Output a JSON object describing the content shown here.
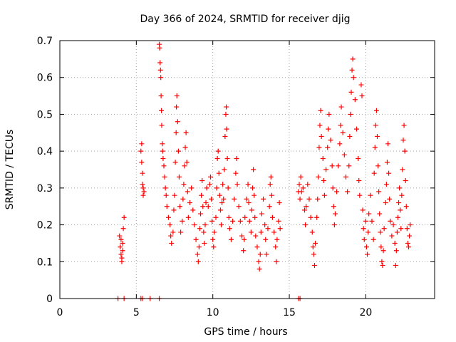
{
  "chart_data": {
    "type": "scatter",
    "title": "Day 366 of 2024, SRMTID for receiver djig",
    "xlabel": "GPS time / hours",
    "ylabel": "SRMTID / TECUs",
    "xlim": [
      0,
      24.5
    ],
    "ylim": [
      0,
      0.7
    ],
    "grid": true,
    "x_ticks": [
      0,
      5,
      10,
      15,
      20
    ],
    "y_ticks": [
      0,
      0.1,
      0.2,
      0.3,
      0.4,
      0.5,
      0.6,
      0.7
    ],
    "x_tick_labels": [
      "0",
      "5",
      "10",
      "15",
      "20"
    ],
    "y_tick_labels": [
      "0",
      "0.1",
      "0.2",
      "0.3",
      "0.4",
      "0.5",
      "0.6",
      "0.7"
    ],
    "marker": "plus",
    "color": "#ff0000",
    "series": [
      {
        "name": "djig",
        "points": [
          [
            3.8,
            0.0
          ],
          [
            4.2,
            0.0
          ],
          [
            5.3,
            0.0
          ],
          [
            5.4,
            0.0
          ],
          [
            5.9,
            0.0
          ],
          [
            6.5,
            0.0
          ],
          [
            15.6,
            0.0
          ],
          [
            15.7,
            0.0
          ],
          [
            3.9,
            0.17
          ],
          [
            3.95,
            0.14
          ],
          [
            4.0,
            0.12
          ],
          [
            4.05,
            0.1
          ],
          [
            4.1,
            0.15
          ],
          [
            4.15,
            0.19
          ],
          [
            4.2,
            0.22
          ],
          [
            4.0,
            0.16
          ],
          [
            4.1,
            0.13
          ],
          [
            4.05,
            0.11
          ],
          [
            5.3,
            0.4
          ],
          [
            5.35,
            0.42
          ],
          [
            5.4,
            0.34
          ],
          [
            5.45,
            0.3
          ],
          [
            5.5,
            0.29
          ],
          [
            5.35,
            0.37
          ],
          [
            5.45,
            0.28
          ],
          [
            5.4,
            0.31
          ],
          [
            6.5,
            0.69
          ],
          [
            6.52,
            0.68
          ],
          [
            6.55,
            0.64
          ],
          [
            6.58,
            0.62
          ],
          [
            6.6,
            0.6
          ],
          [
            6.62,
            0.55
          ],
          [
            6.64,
            0.51
          ],
          [
            6.66,
            0.47
          ],
          [
            6.7,
            0.42
          ],
          [
            6.72,
            0.4
          ],
          [
            6.75,
            0.38
          ],
          [
            6.8,
            0.36
          ],
          [
            6.85,
            0.33
          ],
          [
            6.9,
            0.3
          ],
          [
            6.95,
            0.28
          ],
          [
            7.0,
            0.25
          ],
          [
            7.1,
            0.22
          ],
          [
            7.2,
            0.2
          ],
          [
            7.25,
            0.17
          ],
          [
            7.3,
            0.15
          ],
          [
            7.4,
            0.18
          ],
          [
            7.45,
            0.24
          ],
          [
            7.5,
            0.28
          ],
          [
            7.55,
            0.37
          ],
          [
            7.6,
            0.45
          ],
          [
            7.62,
            0.52
          ],
          [
            7.65,
            0.55
          ],
          [
            7.7,
            0.48
          ],
          [
            7.75,
            0.4
          ],
          [
            7.8,
            0.33
          ],
          [
            7.85,
            0.25
          ],
          [
            7.9,
            0.18
          ],
          [
            8.0,
            0.21
          ],
          [
            8.05,
            0.27
          ],
          [
            8.1,
            0.31
          ],
          [
            8.15,
            0.36
          ],
          [
            8.2,
            0.41
          ],
          [
            8.25,
            0.45
          ],
          [
            8.3,
            0.37
          ],
          [
            8.35,
            0.29
          ],
          [
            8.4,
            0.22
          ],
          [
            8.5,
            0.26
          ],
          [
            8.6,
            0.3
          ],
          [
            8.7,
            0.24
          ],
          [
            8.8,
            0.2
          ],
          [
            8.9,
            0.16
          ],
          [
            9.0,
            0.12
          ],
          [
            9.05,
            0.1
          ],
          [
            9.1,
            0.14
          ],
          [
            9.15,
            0.19
          ],
          [
            9.2,
            0.23
          ],
          [
            9.25,
            0.28
          ],
          [
            9.3,
            0.32
          ],
          [
            9.35,
            0.25
          ],
          [
            9.4,
            0.18
          ],
          [
            9.45,
            0.15
          ],
          [
            9.5,
            0.2
          ],
          [
            9.55,
            0.26
          ],
          [
            9.6,
            0.3
          ],
          [
            9.7,
            0.25
          ],
          [
            9.8,
            0.31
          ],
          [
            9.85,
            0.33
          ],
          [
            9.9,
            0.27
          ],
          [
            9.95,
            0.21
          ],
          [
            10.0,
            0.16
          ],
          [
            10.05,
            0.14
          ],
          [
            10.1,
            0.18
          ],
          [
            10.2,
            0.22
          ],
          [
            10.25,
            0.3
          ],
          [
            10.3,
            0.38
          ],
          [
            10.35,
            0.4
          ],
          [
            10.4,
            0.34
          ],
          [
            10.45,
            0.28
          ],
          [
            10.5,
            0.24
          ],
          [
            10.55,
            0.2
          ],
          [
            10.6,
            0.26
          ],
          [
            10.65,
            0.31
          ],
          [
            10.7,
            0.27
          ],
          [
            10.75,
            0.35
          ],
          [
            10.8,
            0.44
          ],
          [
            10.85,
            0.5
          ],
          [
            10.88,
            0.52
          ],
          [
            10.9,
            0.46
          ],
          [
            10.95,
            0.38
          ],
          [
            11.0,
            0.3
          ],
          [
            11.05,
            0.22
          ],
          [
            11.1,
            0.19
          ],
          [
            11.2,
            0.16
          ],
          [
            11.3,
            0.21
          ],
          [
            11.4,
            0.27
          ],
          [
            11.5,
            0.34
          ],
          [
            11.55,
            0.38
          ],
          [
            11.6,
            0.31
          ],
          [
            11.7,
            0.25
          ],
          [
            11.8,
            0.21
          ],
          [
            11.9,
            0.17
          ],
          [
            12.0,
            0.13
          ],
          [
            12.05,
            0.16
          ],
          [
            12.1,
            0.22
          ],
          [
            12.2,
            0.27
          ],
          [
            12.3,
            0.31
          ],
          [
            12.35,
            0.26
          ],
          [
            12.4,
            0.21
          ],
          [
            12.5,
            0.18
          ],
          [
            12.55,
            0.24
          ],
          [
            12.6,
            0.3
          ],
          [
            12.65,
            0.35
          ],
          [
            12.7,
            0.28
          ],
          [
            12.75,
            0.22
          ],
          [
            12.8,
            0.17
          ],
          [
            12.9,
            0.14
          ],
          [
            13.0,
            0.1
          ],
          [
            13.05,
            0.08
          ],
          [
            13.1,
            0.12
          ],
          [
            13.15,
            0.18
          ],
          [
            13.2,
            0.23
          ],
          [
            13.3,
            0.27
          ],
          [
            13.4,
            0.2
          ],
          [
            13.45,
            0.16
          ],
          [
            13.5,
            0.12
          ],
          [
            13.6,
            0.19
          ],
          [
            13.7,
            0.25
          ],
          [
            13.75,
            0.31
          ],
          [
            13.8,
            0.33
          ],
          [
            13.85,
            0.28
          ],
          [
            13.9,
            0.22
          ],
          [
            14.0,
            0.18
          ],
          [
            14.1,
            0.14
          ],
          [
            14.15,
            0.1
          ],
          [
            14.2,
            0.16
          ],
          [
            14.3,
            0.21
          ],
          [
            14.35,
            0.26
          ],
          [
            14.4,
            0.19
          ],
          [
            15.6,
            0.29
          ],
          [
            15.65,
            0.31
          ],
          [
            15.7,
            0.27
          ],
          [
            15.75,
            0.33
          ],
          [
            15.8,
            0.29
          ],
          [
            15.9,
            0.3
          ],
          [
            16.0,
            0.24
          ],
          [
            16.05,
            0.2
          ],
          [
            16.1,
            0.25
          ],
          [
            16.2,
            0.31
          ],
          [
            16.3,
            0.27
          ],
          [
            16.4,
            0.22
          ],
          [
            16.5,
            0.18
          ],
          [
            16.55,
            0.14
          ],
          [
            16.6,
            0.12
          ],
          [
            16.65,
            0.09
          ],
          [
            16.7,
            0.15
          ],
          [
            16.8,
            0.22
          ],
          [
            16.85,
            0.27
          ],
          [
            16.9,
            0.33
          ],
          [
            16.95,
            0.41
          ],
          [
            17.0,
            0.47
          ],
          [
            17.05,
            0.51
          ],
          [
            17.1,
            0.44
          ],
          [
            17.2,
            0.38
          ],
          [
            17.25,
            0.32
          ],
          [
            17.3,
            0.28
          ],
          [
            17.4,
            0.35
          ],
          [
            17.5,
            0.41
          ],
          [
            17.55,
            0.46
          ],
          [
            17.6,
            0.5
          ],
          [
            17.7,
            0.43
          ],
          [
            17.8,
            0.36
          ],
          [
            17.85,
            0.3
          ],
          [
            17.9,
            0.25
          ],
          [
            17.95,
            0.2
          ],
          [
            18.0,
            0.23
          ],
          [
            18.1,
            0.29
          ],
          [
            18.2,
            0.36
          ],
          [
            18.3,
            0.42
          ],
          [
            18.35,
            0.47
          ],
          [
            18.4,
            0.52
          ],
          [
            18.5,
            0.45
          ],
          [
            18.6,
            0.39
          ],
          [
            18.7,
            0.33
          ],
          [
            18.8,
            0.29
          ],
          [
            18.9,
            0.36
          ],
          [
            18.95,
            0.44
          ],
          [
            19.0,
            0.5
          ],
          [
            19.05,
            0.56
          ],
          [
            19.1,
            0.62
          ],
          [
            19.15,
            0.65
          ],
          [
            19.2,
            0.6
          ],
          [
            19.3,
            0.54
          ],
          [
            19.4,
            0.46
          ],
          [
            19.5,
            0.38
          ],
          [
            19.55,
            0.32
          ],
          [
            19.6,
            0.28
          ],
          [
            19.7,
            0.58
          ],
          [
            19.75,
            0.55
          ],
          [
            19.8,
            0.24
          ],
          [
            19.85,
            0.19
          ],
          [
            19.9,
            0.16
          ],
          [
            20.0,
            0.21
          ],
          [
            20.05,
            0.14
          ],
          [
            20.1,
            0.12
          ],
          [
            20.15,
            0.18
          ],
          [
            20.2,
            0.23
          ],
          [
            20.3,
            0.28
          ],
          [
            20.4,
            0.21
          ],
          [
            20.5,
            0.16
          ],
          [
            20.55,
            0.34
          ],
          [
            20.6,
            0.41
          ],
          [
            20.65,
            0.47
          ],
          [
            20.7,
            0.51
          ],
          [
            20.75,
            0.44
          ],
          [
            20.8,
            0.36
          ],
          [
            20.85,
            0.29
          ],
          [
            20.9,
            0.23
          ],
          [
            20.95,
            0.18
          ],
          [
            21.0,
            0.14
          ],
          [
            21.05,
            0.1
          ],
          [
            21.1,
            0.09
          ],
          [
            21.15,
            0.13
          ],
          [
            21.2,
            0.19
          ],
          [
            21.3,
            0.26
          ],
          [
            21.35,
            0.31
          ],
          [
            21.4,
            0.37
          ],
          [
            21.45,
            0.42
          ],
          [
            21.5,
            0.34
          ],
          [
            21.55,
            0.27
          ],
          [
            21.6,
            0.21
          ],
          [
            21.7,
            0.17
          ],
          [
            21.8,
            0.2
          ],
          [
            21.9,
            0.15
          ],
          [
            21.95,
            0.09
          ],
          [
            22.0,
            0.13
          ],
          [
            22.05,
            0.18
          ],
          [
            22.1,
            0.22
          ],
          [
            22.15,
            0.26
          ],
          [
            22.2,
            0.3
          ],
          [
            22.25,
            0.24
          ],
          [
            22.3,
            0.19
          ],
          [
            22.35,
            0.28
          ],
          [
            22.4,
            0.35
          ],
          [
            22.45,
            0.43
          ],
          [
            22.5,
            0.47
          ],
          [
            22.55,
            0.4
          ],
          [
            22.6,
            0.32
          ],
          [
            22.65,
            0.25
          ],
          [
            22.7,
            0.19
          ],
          [
            22.75,
            0.15
          ],
          [
            22.8,
            0.14
          ],
          [
            22.85,
            0.17
          ],
          [
            22.9,
            0.2
          ]
        ]
      }
    ]
  }
}
